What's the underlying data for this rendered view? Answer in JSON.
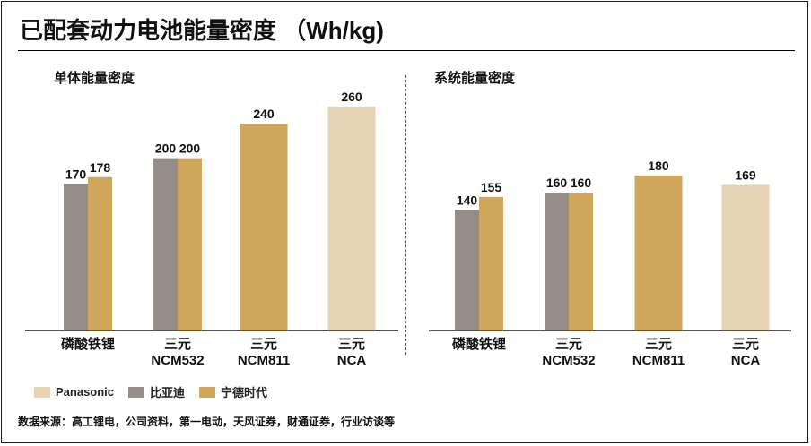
{
  "title": "已配套动力电池能量密度 （Wh/kg)",
  "legend": [
    {
      "label": "Panasonic",
      "color": "#E6D2B5"
    },
    {
      "label": "比亚迪",
      "color": "#968D89"
    },
    {
      "label": "宁德时代",
      "color": "#D0A65D"
    }
  ],
  "source": "数据来源：高工锂电，公司资料，第一电动，天风证券，财通证券，行业访谈等",
  "chart_data": [
    {
      "type": "bar",
      "title": "单体能量密度",
      "categories": [
        [
          "磷酸铁锂"
        ],
        [
          "三元",
          "NCM532"
        ],
        [
          "三元",
          "NCM811"
        ],
        [
          "三元",
          "NCA"
        ]
      ],
      "series": [
        {
          "name": "Panasonic",
          "values": [
            null,
            null,
            null,
            260
          ]
        },
        {
          "name": "比亚迪",
          "values": [
            170,
            200,
            null,
            null
          ]
        },
        {
          "name": "宁德时代",
          "values": [
            178,
            200,
            240,
            null
          ]
        }
      ],
      "ylim": [
        0,
        290
      ],
      "xlabel": "",
      "ylabel": ""
    },
    {
      "type": "bar",
      "title": "系统能量密度",
      "categories": [
        [
          "磷酸铁锂"
        ],
        [
          "三元",
          "NCM532"
        ],
        [
          "三元",
          "NCM811"
        ],
        [
          "三元",
          "NCA"
        ]
      ],
      "series": [
        {
          "name": "Panasonic",
          "values": [
            null,
            null,
            null,
            169
          ]
        },
        {
          "name": "比亚迪",
          "values": [
            140,
            160,
            null,
            null
          ]
        },
        {
          "name": "宁德时代",
          "values": [
            155,
            160,
            180,
            null
          ]
        }
      ],
      "ylim": [
        0,
        290
      ],
      "xlabel": "",
      "ylabel": ""
    }
  ]
}
